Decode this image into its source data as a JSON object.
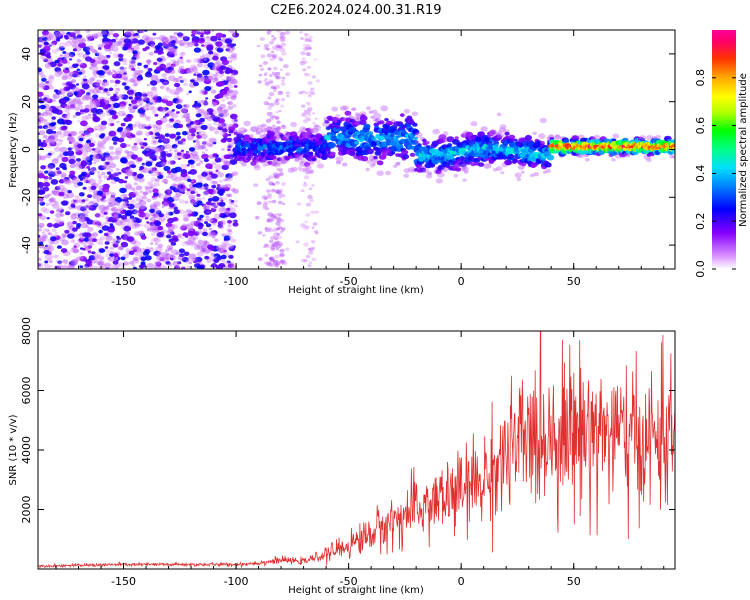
{
  "title": "C2E6.2024.024.00.31.R19",
  "colors": {
    "signal": "#e03030",
    "frame": "#000000",
    "rainbow": [
      "#cc99ff",
      "#9933ff",
      "#4400ee",
      "#0000ff",
      "#0088ff",
      "#00ddff",
      "#00ff88",
      "#00ff00",
      "#aaff00",
      "#ffff00",
      "#ffaa00",
      "#ff3300",
      "#ff0066",
      "#ff0099"
    ]
  },
  "chart_data": [
    {
      "type": "heatmap",
      "title": "C2E6.2024.024.00.31.R19",
      "xlabel": "Height of straight line (km)",
      "ylabel": "Frequency (Hz)",
      "xlim": [
        -188,
        95
      ],
      "ylim": [
        -50,
        50
      ],
      "xticks": [
        -150,
        -100,
        -50,
        0,
        50
      ],
      "yticks": [
        -40,
        -20,
        0,
        20,
        40
      ],
      "colorbar": {
        "label": "Normalized spectral amplitude",
        "range": [
          0.0,
          1.0
        ],
        "ticks": [
          0.0,
          0.2,
          0.4,
          0.6,
          0.8
        ]
      },
      "description_of_regions": [
        {
          "x_range": [
            -188,
            -100
          ],
          "note": "broadband noise spanning -50 to 50 Hz, amplitude 0.05-0.3"
        },
        {
          "x_range": [
            -100,
            -60
          ],
          "note": "noise band centered near 0 Hz, amplitude 0.2-0.5"
        },
        {
          "x_range": [
            -60,
            -20
          ],
          "note": "signal near 0 to 10 Hz, amplitude 0.3-0.6"
        },
        {
          "x_range": [
            -20,
            40
          ],
          "note": "signal near -3 to 3 Hz, amplitude 0.3-0.7"
        },
        {
          "x_range": [
            40,
            95
          ],
          "note": "signal near 1 Hz, amplitude 0.8-1.0"
        }
      ]
    },
    {
      "type": "line",
      "xlabel": "Height of straight line (km)",
      "ylabel": "SNR (10 * v/v)",
      "xlim": [
        -188,
        95
      ],
      "ylim": [
        0,
        8000
      ],
      "xticks": [
        -150,
        -100,
        -50,
        0,
        50
      ],
      "yticks": [
        2000,
        4000,
        6000,
        8000
      ],
      "series": [
        {
          "x": [
            -188,
            -150,
            -120,
            -100,
            -90,
            -80,
            -70,
            -60,
            -50,
            -40,
            -30,
            -20,
            -10,
            0,
            10,
            20,
            30,
            40,
            50,
            60,
            70,
            80,
            90,
            95
          ],
          "y": [
            100,
            150,
            150,
            150,
            200,
            300,
            250,
            500,
            800,
            1200,
            1600,
            2000,
            2300,
            2600,
            3000,
            3800,
            4400,
            4600,
            4700,
            4700,
            4500,
            4200,
            4500,
            4500
          ]
        }
      ]
    }
  ]
}
